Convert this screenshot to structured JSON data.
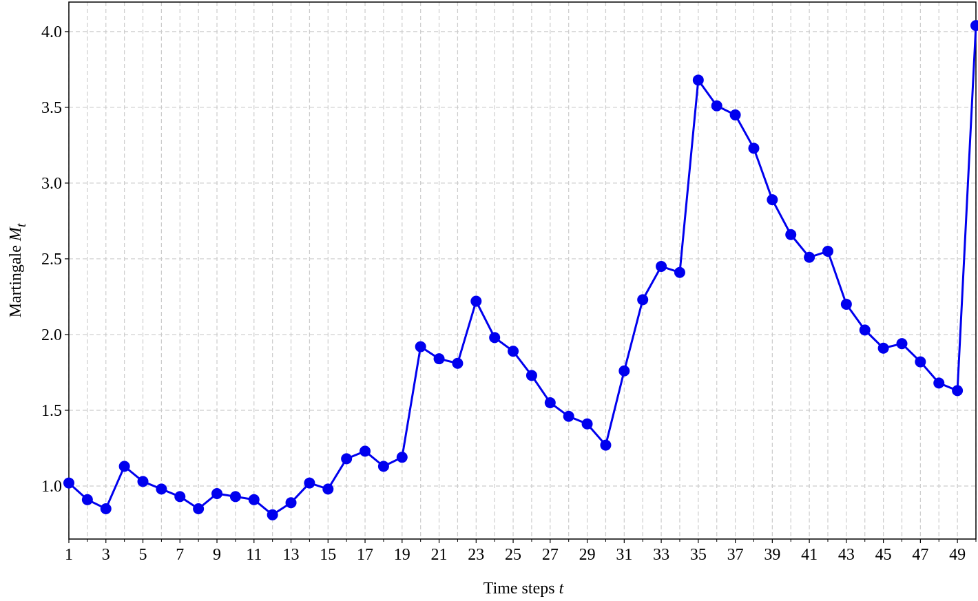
{
  "chart_data": {
    "type": "line",
    "xlabel": "Time steps",
    "xlabel_math": "t",
    "ylabel": "Martingale",
    "ylabel_math": "M",
    "ylabel_sub": "t",
    "x": [
      1,
      2,
      3,
      4,
      5,
      6,
      7,
      8,
      9,
      10,
      11,
      12,
      13,
      14,
      15,
      16,
      17,
      18,
      19,
      20,
      21,
      22,
      23,
      24,
      25,
      26,
      27,
      28,
      29,
      30,
      31,
      32,
      33,
      34,
      35,
      36,
      37,
      38,
      39,
      40,
      41,
      42,
      43,
      44,
      45,
      46,
      47,
      48,
      49,
      50
    ],
    "series": [
      {
        "name": "Martingale",
        "color": "#0000ee",
        "values": [
          1.02,
          0.91,
          0.85,
          1.13,
          1.03,
          0.98,
          0.93,
          0.85,
          0.95,
          0.93,
          0.91,
          0.81,
          0.89,
          1.02,
          0.98,
          1.18,
          1.23,
          1.13,
          1.19,
          1.92,
          1.84,
          1.81,
          2.22,
          1.98,
          1.89,
          1.73,
          1.55,
          1.46,
          1.41,
          1.27,
          1.76,
          2.23,
          2.45,
          2.41,
          3.68,
          3.51,
          3.45,
          3.23,
          2.89,
          2.66,
          2.51,
          2.55,
          2.2,
          2.03,
          1.91,
          1.94,
          1.82,
          1.68,
          1.63,
          4.04
        ]
      }
    ],
    "xlim": [
      1,
      50
    ],
    "ylim": [
      0.65,
      4.195
    ],
    "xticks": [
      1,
      3,
      5,
      7,
      9,
      11,
      13,
      15,
      17,
      19,
      21,
      23,
      25,
      27,
      29,
      31,
      33,
      35,
      37,
      39,
      41,
      43,
      45,
      47,
      49
    ],
    "xminorticks": [
      2,
      4,
      6,
      8,
      10,
      12,
      14,
      16,
      18,
      20,
      22,
      24,
      26,
      28,
      30,
      32,
      34,
      36,
      38,
      40,
      42,
      44,
      46,
      48,
      50
    ],
    "yticks": [
      {
        "value": 1.0,
        "label": "1.0"
      },
      {
        "value": 1.5,
        "label": "1.5"
      },
      {
        "value": 2.0,
        "label": "2.0"
      },
      {
        "value": 2.5,
        "label": "2.5"
      },
      {
        "value": 3.0,
        "label": "3.0"
      },
      {
        "value": 3.5,
        "label": "3.5"
      },
      {
        "value": 4.0,
        "label": "4.0"
      }
    ],
    "grid": true
  }
}
